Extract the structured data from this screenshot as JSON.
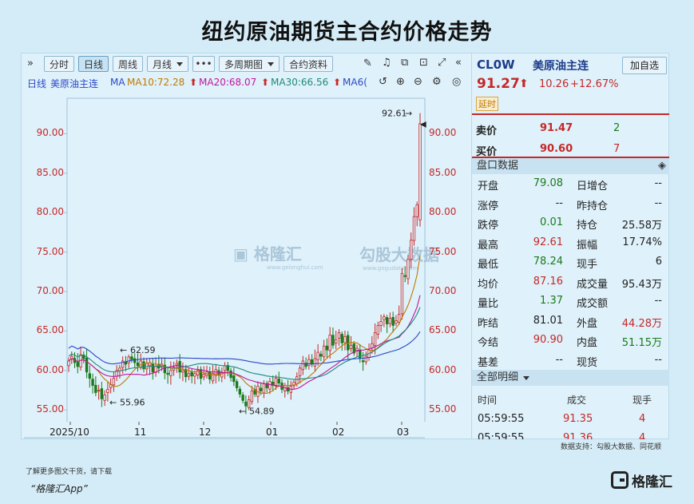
{
  "title": "纽约原油期货主合约价格走势",
  "toolbar": {
    "expand": "»",
    "tabs": [
      "分时",
      "日线",
      "周线"
    ],
    "active_tab": "日线",
    "month_label": "月线",
    "more_label": "•••",
    "multi_period_label": "多周期图",
    "contract_info_label": "合约资料"
  },
  "ma_legend": {
    "period": "日线",
    "name": "美原油主连",
    "ma": "MA",
    "ma10": "MA10:72.28",
    "ma20": "MA20:68.07",
    "ma30": "MA30:66.56",
    "ma60": "MA6("
  },
  "colors": {
    "up": "#c62828",
    "down": "#1b7a1b",
    "ma10": "#c17a00",
    "ma20": "#c2169e",
    "ma30": "#1f8a7a",
    "ma60": "#2b48c8"
  },
  "quote": {
    "code": "CL0W",
    "name": "美原油主连",
    "add_btn": "加自选",
    "price": "91.27",
    "arrow": "⬆",
    "change": "10.26",
    "pct": "+12.67%",
    "delay": "延时",
    "sell_label": "卖价",
    "sell_price": "91.47",
    "sell_qty": "2",
    "buy_label": "买价",
    "buy_price": "90.60",
    "buy_qty": "7",
    "panel_title": "盘口数据",
    "stats": [
      {
        "l1": "开盘",
        "v1": "79.08",
        "c1": "green",
        "l2": "日增仓",
        "v2": "--",
        "c2": "blk"
      },
      {
        "l1": "涨停",
        "v1": "--",
        "c1": "blk",
        "l2": "昨持仓",
        "v2": "--",
        "c2": "blk"
      },
      {
        "l1": "跌停",
        "v1": "0.01",
        "c1": "green",
        "l2": "持仓",
        "v2": "25.58万",
        "c2": "blk"
      },
      {
        "l1": "最高",
        "v1": "92.61",
        "c1": "red",
        "l2": "振幅",
        "v2": "17.74%",
        "c2": "blk"
      },
      {
        "l1": "最低",
        "v1": "78.24",
        "c1": "green",
        "l2": "现手",
        "v2": "6",
        "c2": "blk"
      },
      {
        "l1": "均价",
        "v1": "87.16",
        "c1": "red",
        "l2": "成交量",
        "v2": "95.43万",
        "c2": "blk"
      },
      {
        "l1": "量比",
        "v1": "1.37",
        "c1": "green",
        "l2": "成交额",
        "v2": "--",
        "c2": "blk"
      },
      {
        "l1": "昨结",
        "v1": "81.01",
        "c1": "blk",
        "l2": "外盘",
        "v2": "44.28万",
        "c2": "red"
      },
      {
        "l1": "今结",
        "v1": "90.90",
        "c1": "red",
        "l2": "内盘",
        "v2": "51.15万",
        "c2": "green"
      },
      {
        "l1": "基差",
        "v1": "--",
        "c1": "blk",
        "l2": "现货",
        "v2": "--",
        "c2": "blk"
      }
    ],
    "detail_title": "全部明细",
    "detail_cols": [
      "时间",
      "成交",
      "现手"
    ],
    "detail_rows": [
      {
        "t": "05:59:55",
        "p": "91.35",
        "q": "4"
      },
      {
        "t": "05:59:55",
        "p": "91.36",
        "q": "4"
      }
    ]
  },
  "watermark": {
    "a": "格隆汇",
    "b": "勾股大数据",
    "a_url": "www.gelonghui.com",
    "b_url": "www.gogudata.com"
  },
  "source": "数据支持：勾股大数据、同花顺",
  "footer": {
    "line1": "了解更多图文干货，请下载",
    "line2": "“格隆汇App”",
    "logo": "格隆汇"
  },
  "chart_data": {
    "type": "candlestick",
    "y_ticks": [
      "90.00",
      "85.00",
      "80.00",
      "75.00",
      "70.00",
      "65.00",
      "60.00",
      "55.00"
    ],
    "x_ticks": [
      "2025/10",
      "11",
      "12",
      "01",
      "02",
      "03"
    ],
    "annotations": [
      {
        "label": "92.61",
        "value": 92.61,
        "kind": "high"
      },
      {
        "label": "62.59",
        "value": 62.59,
        "kind": "local-high"
      },
      {
        "label": "55.96",
        "value": 55.96,
        "kind": "local-low"
      },
      {
        "label": "54.89",
        "value": 54.89,
        "kind": "low"
      }
    ],
    "ylim": [
      53.5,
      94.5
    ],
    "closes": [
      61.2,
      61.8,
      61.0,
      60.5,
      62.0,
      61.5,
      59.8,
      59.0,
      58.1,
      57.2,
      57.5,
      56.4,
      56.9,
      57.6,
      58.2,
      59.0,
      60.0,
      60.3,
      61.2,
      60.8,
      61.7,
      61.4,
      61.0,
      60.6,
      61.2,
      60.2,
      60.9,
      61.0,
      59.8,
      60.5,
      60.3,
      60.8,
      59.7,
      59.5,
      60.0,
      60.4,
      60.9,
      59.8,
      60.0,
      59.2,
      59.6,
      59.3,
      59.6,
      60.0,
      59.0,
      59.5,
      59.8,
      58.9,
      59.6,
      60.1,
      59.4,
      59.8,
      60.6,
      60.0,
      59.1,
      58.6,
      57.8,
      57.0,
      56.2,
      55.5,
      56.3,
      57.4,
      57.0,
      58.0,
      57.4,
      58.3,
      57.8,
      58.6,
      58.1,
      59.0,
      58.4,
      57.6,
      58.1,
      57.4,
      58.0,
      58.5,
      59.2,
      60.3,
      61.2,
      60.5,
      61.4,
      60.8,
      61.5,
      62.3,
      61.8,
      63.1,
      62.6,
      64.5,
      63.2,
      63.9,
      64.8,
      63.5,
      64.3,
      62.6,
      63.2,
      62.2,
      62.8,
      61.5,
      61.1,
      61.8,
      62.6,
      63.4,
      64.8,
      65.7,
      66.2,
      66.8,
      65.9,
      66.6,
      65.7,
      66.3,
      67.1,
      72.3,
      71.9,
      74.1,
      76.5,
      79.5,
      81.0,
      91.27
    ]
  }
}
